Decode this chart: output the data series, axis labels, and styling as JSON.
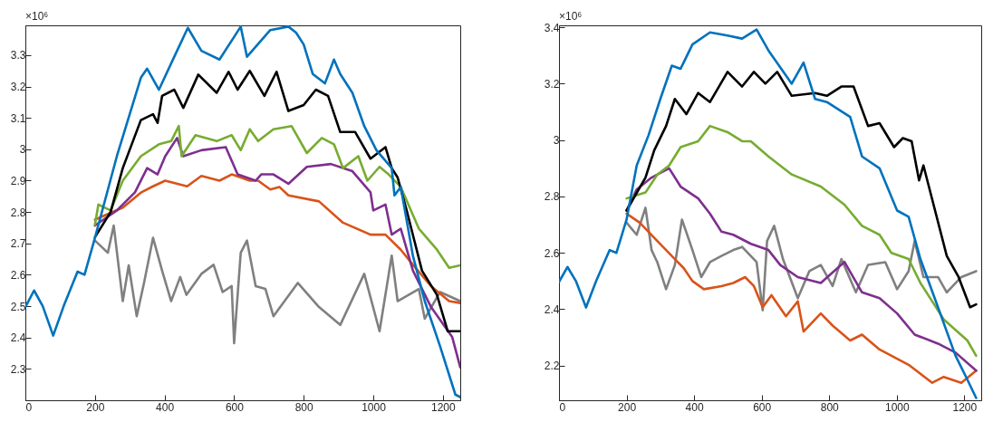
{
  "chart_data": [
    {
      "type": "line",
      "xlim": [
        0,
        1250
      ],
      "ylim": [
        2.2,
        3.395
      ],
      "xticks": [
        0,
        200,
        400,
        600,
        800,
        1000,
        1200
      ],
      "yticks": [
        2.3,
        2.4,
        2.5,
        2.6,
        2.7,
        2.8,
        2.9,
        3,
        3.1,
        3.2,
        3.3
      ],
      "grid": false,
      "annotations": [
        "×10⁶"
      ],
      "series": [
        {
          "color": "#808080",
          "x": [
            200,
            237,
            254,
            280,
            297,
            320,
            341,
            367,
            393,
            419,
            445,
            463,
            506,
            541,
            567,
            593,
            600,
            619,
            637,
            662,
            690,
            713,
            783,
            844,
            905,
            974,
            1018,
            1053,
            1070,
            1131,
            1148,
            1192,
            1250
          ],
          "values": [
            2.709,
            2.67,
            2.757,
            2.516,
            2.63,
            2.468,
            2.574,
            2.718,
            2.613,
            2.516,
            2.593,
            2.536,
            2.603,
            2.632,
            2.545,
            2.564,
            2.382,
            2.67,
            2.709,
            2.564,
            2.555,
            2.468,
            2.574,
            2.497,
            2.44,
            2.603,
            2.42,
            2.661,
            2.516,
            2.555,
            2.46,
            2.545,
            2.516
          ]
        },
        {
          "color": "#d95319",
          "x": [
            200,
            280,
            332,
            367,
            402,
            465,
            506,
            558,
            593,
            645,
            669,
            704,
            730,
            756,
            844,
            913,
            992,
            1035,
            1079,
            1114,
            1166,
            1218,
            1250
          ],
          "values": [
            2.776,
            2.814,
            2.862,
            2.882,
            2.9,
            2.882,
            2.915,
            2.9,
            2.92,
            2.9,
            2.9,
            2.872,
            2.88,
            2.853,
            2.834,
            2.766,
            2.728,
            2.728,
            2.68,
            2.632,
            2.564,
            2.516,
            2.51
          ]
        },
        {
          "color": "#7e2f8e",
          "x": [
            200,
            263,
            315,
            350,
            380,
            402,
            436,
            454,
            506,
            576,
            610,
            662,
            678,
            713,
            756,
            809,
            878,
            940,
            992,
            1000,
            1035,
            1053,
            1079,
            1114,
            1166,
            1227,
            1250
          ],
          "values": [
            2.757,
            2.805,
            2.863,
            2.94,
            2.92,
            2.978,
            3.036,
            2.978,
            2.997,
            3.007,
            2.92,
            2.9,
            2.92,
            2.92,
            2.89,
            2.944,
            2.953,
            2.93,
            2.863,
            2.805,
            2.824,
            2.728,
            2.747,
            2.613,
            2.497,
            2.401,
            2.305
          ]
        },
        {
          "color": "#77ac30",
          "x": [
            200,
            210,
            245,
            280,
            332,
            384,
            419,
            441,
            449,
            489,
            550,
            593,
            619,
            645,
            669,
            713,
            765,
            809,
            852,
            887,
            913,
            957,
            983,
            1018,
            1044,
            1079,
            1131,
            1183,
            1218,
            1250
          ],
          "values": [
            2.76,
            2.824,
            2.805,
            2.9,
            2.978,
            3.016,
            3.026,
            3.074,
            2.978,
            3.045,
            3.026,
            3.045,
            2.997,
            3.064,
            3.026,
            3.064,
            3.074,
            2.988,
            3.036,
            3.016,
            2.94,
            2.978,
            2.9,
            2.944,
            2.92,
            2.88,
            2.747,
            2.68,
            2.622,
            2.63
          ]
        },
        {
          "color": "#000000",
          "x": [
            200,
            245,
            280,
            332,
            367,
            380,
            393,
            428,
            454,
            497,
            550,
            584,
            610,
            645,
            687,
            722,
            756,
            800,
            835,
            870,
            905,
            948,
            992,
            1035,
            1053,
            1070,
            1096,
            1140,
            1183,
            1214,
            1250
          ],
          "values": [
            2.72,
            2.8,
            2.94,
            3.093,
            3.112,
            3.084,
            3.17,
            3.19,
            3.132,
            3.238,
            3.18,
            3.247,
            3.19,
            3.25,
            3.17,
            3.247,
            3.122,
            3.141,
            3.19,
            3.17,
            3.055,
            3.055,
            2.97,
            3.007,
            2.94,
            2.91,
            2.805,
            2.613,
            2.536,
            2.42,
            2.42
          ]
        },
        {
          "color": "#0072bd",
          "x": [
            0,
            25,
            50,
            80,
            110,
            150,
            170,
            200,
            263,
            332,
            350,
            384,
            428,
            467,
            506,
            558,
            619,
            637,
            704,
            756,
            778,
            800,
            826,
            861,
            887,
            905,
            940,
            974,
            1009,
            1053,
            1061,
            1079,
            1114,
            1148,
            1192,
            1236,
            1250
          ],
          "values": [
            2.497,
            2.55,
            2.5,
            2.406,
            2.5,
            2.61,
            2.6,
            2.718,
            2.978,
            3.228,
            3.257,
            3.19,
            3.295,
            3.387,
            3.314,
            3.286,
            3.391,
            3.295,
            3.38,
            3.391,
            3.372,
            3.334,
            3.24,
            3.21,
            3.286,
            3.24,
            3.18,
            3.074,
            2.997,
            2.94,
            2.853,
            2.88,
            2.66,
            2.516,
            2.372,
            2.218,
            2.21
          ]
        }
      ]
    },
    {
      "type": "line",
      "xlim": [
        0,
        1250
      ],
      "ylim": [
        2.077,
        3.407
      ],
      "xticks": [
        0,
        200,
        400,
        600,
        800,
        1000,
        1200
      ],
      "yticks": [
        2.2,
        2.4,
        2.6,
        2.8,
        3,
        3.2,
        3.4
      ],
      "grid": false,
      "annotations": [
        "×10⁶"
      ],
      "series": [
        {
          "color": "#808080",
          "x": [
            200,
            230,
            256,
            274,
            291,
            317,
            343,
            364,
            395,
            421,
            447,
            481,
            516,
            542,
            585,
            603,
            616,
            637,
            663,
            707,
            741,
            775,
            810,
            836,
            879,
            915,
            966,
            1001,
            1035,
            1053,
            1079,
            1122,
            1148,
            1191,
            1235
          ],
          "values": [
            2.707,
            2.664,
            2.76,
            2.61,
            2.567,
            2.471,
            2.557,
            2.718,
            2.61,
            2.514,
            2.567,
            2.589,
            2.61,
            2.621,
            2.567,
            2.396,
            2.642,
            2.696,
            2.578,
            2.439,
            2.535,
            2.557,
            2.482,
            2.578,
            2.46,
            2.557,
            2.567,
            2.471,
            2.535,
            2.642,
            2.514,
            2.514,
            2.46,
            2.514,
            2.535
          ]
        },
        {
          "color": "#d95319",
          "x": [
            200,
            239,
            291,
            343,
            369,
            395,
            429,
            481,
            516,
            551,
            577,
            603,
            629,
            672,
            707,
            724,
            775,
            810,
            862,
            897,
            949,
            1035,
            1105,
            1139,
            1191,
            1235
          ],
          "values": [
            2.739,
            2.707,
            2.642,
            2.578,
            2.546,
            2.5,
            2.471,
            2.482,
            2.493,
            2.514,
            2.482,
            2.407,
            2.45,
            2.375,
            2.428,
            2.321,
            2.385,
            2.342,
            2.289,
            2.31,
            2.257,
            2.203,
            2.139,
            2.16,
            2.139,
            2.182
          ]
        },
        {
          "color": "#7e2f8e",
          "x": [
            200,
            230,
            274,
            326,
            360,
            412,
            447,
            481,
            516,
            568,
            620,
            655,
            707,
            775,
            845,
            897,
            949,
            1001,
            1053,
            1122,
            1174,
            1235
          ],
          "values": [
            2.75,
            2.825,
            2.867,
            2.9,
            2.835,
            2.793,
            2.739,
            2.675,
            2.664,
            2.632,
            2.61,
            2.557,
            2.514,
            2.493,
            2.568,
            2.46,
            2.439,
            2.385,
            2.31,
            2.278,
            2.246,
            2.182
          ]
        },
        {
          "color": "#77ac30",
          "x": [
            200,
            256,
            291,
            326,
            360,
            412,
            447,
            499,
            542,
            568,
            620,
            689,
            775,
            845,
            897,
            949,
            984,
            1035,
            1070,
            1139,
            1209,
            1235
          ],
          "values": [
            2.793,
            2.814,
            2.878,
            2.91,
            2.975,
            2.996,
            3.05,
            3.028,
            2.996,
            2.996,
            2.942,
            2.878,
            2.835,
            2.771,
            2.696,
            2.664,
            2.6,
            2.578,
            2.493,
            2.364,
            2.289,
            2.235
          ]
        },
        {
          "color": "#000000",
          "x": [
            200,
            256,
            282,
            317,
            343,
            377,
            412,
            447,
            499,
            542,
            577,
            611,
            646,
            689,
            758,
            793,
            836,
            872,
            915,
            949,
            992,
            1018,
            1044,
            1066,
            1079,
            1148,
            1183,
            1217,
            1235
          ],
          "values": [
            2.75,
            2.867,
            2.964,
            3.05,
            3.146,
            3.092,
            3.167,
            3.135,
            3.242,
            3.19,
            3.242,
            3.2,
            3.242,
            3.157,
            3.167,
            3.157,
            3.19,
            3.19,
            3.05,
            3.06,
            2.975,
            3.007,
            2.996,
            2.857,
            2.91,
            2.589,
            2.514,
            2.407,
            2.417
          ]
        },
        {
          "color": "#0072bd",
          "x": [
            0,
            25,
            50,
            80,
            110,
            150,
            170,
            200,
            230,
            265,
            300,
            334,
            360,
            395,
            447,
            499,
            542,
            585,
            620,
            689,
            724,
            758,
            793,
            862,
            897,
            949,
            1001,
            1035,
            1070,
            1122,
            1174,
            1209,
            1235
          ],
          "values": [
            2.497,
            2.55,
            2.5,
            2.406,
            2.5,
            2.61,
            2.6,
            2.718,
            2.91,
            3.017,
            3.146,
            3.264,
            3.253,
            3.339,
            3.382,
            3.371,
            3.36,
            3.392,
            3.318,
            3.2,
            3.275,
            3.146,
            3.135,
            3.082,
            2.942,
            2.9,
            2.75,
            2.728,
            2.578,
            2.407,
            2.235,
            2.15,
            2.085
          ]
        }
      ]
    }
  ]
}
